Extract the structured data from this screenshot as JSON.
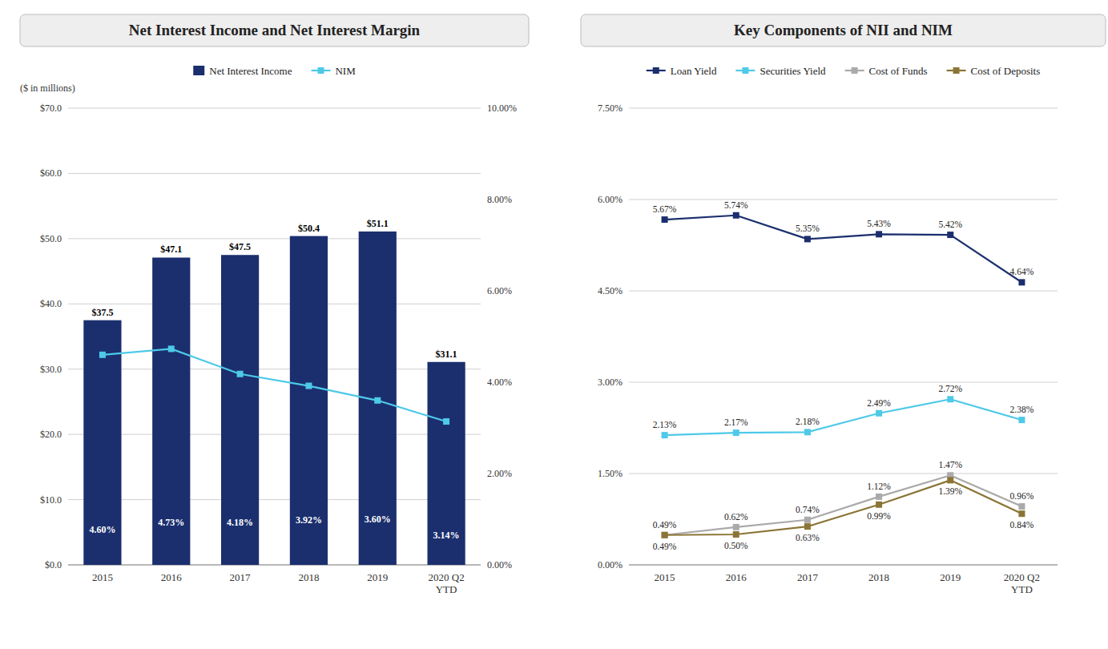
{
  "chart_data": [
    {
      "type": "bar",
      "title": "Net Interest Income and Net Interest Margin",
      "subtitle": "($ in millions)",
      "categories": [
        "2015",
        "2016",
        "2017",
        "2018",
        "2019",
        "2020 Q2\nYTD"
      ],
      "series": [
        {
          "name": "Net Interest Income",
          "type": "bar",
          "color": "#1b2f6e",
          "values": [
            37.5,
            47.1,
            47.5,
            50.4,
            51.1,
            31.1
          ],
          "value_labels": [
            "$37.5",
            "$47.1",
            "$47.5",
            "$50.4",
            "$51.1",
            "$31.1"
          ]
        },
        {
          "name": "NIM",
          "type": "line",
          "axis": "y2",
          "color": "#4ec9e8",
          "marker": "square",
          "values": [
            4.6,
            4.73,
            4.18,
            3.92,
            3.6,
            3.14
          ],
          "value_labels": [
            "4.60%",
            "4.73%",
            "4.18%",
            "3.92%",
            "3.60%",
            "3.14%"
          ]
        }
      ],
      "ylim": [
        0,
        70
      ],
      "yticks": [
        {
          "value": 0,
          "label": "$0.0"
        },
        {
          "value": 10,
          "label": "$10.0"
        },
        {
          "value": 20,
          "label": "$20.0"
        },
        {
          "value": 30,
          "label": "$30.0"
        },
        {
          "value": 40,
          "label": "$40.0"
        },
        {
          "value": 50,
          "label": "$50.0"
        },
        {
          "value": 60,
          "label": "$60.0"
        },
        {
          "value": 70,
          "label": "$70.0"
        }
      ],
      "y2lim": [
        0,
        10
      ],
      "y2ticks": [
        {
          "value": 0,
          "label": "0.00%"
        },
        {
          "value": 2,
          "label": "2.00%"
        },
        {
          "value": 4,
          "label": "4.00%"
        },
        {
          "value": 6,
          "label": "6.00%"
        },
        {
          "value": 8,
          "label": "8.00%"
        },
        {
          "value": 10,
          "label": "10.00%"
        }
      ],
      "grid": true,
      "legend": "top",
      "data_labels": true
    },
    {
      "type": "line",
      "title": "Key Components of NII and NIM",
      "categories": [
        "2015",
        "2016",
        "2017",
        "2018",
        "2019",
        "2020 Q2\nYTD"
      ],
      "series": [
        {
          "name": "Loan Yield",
          "color": "#1b2f6e",
          "marker": "square",
          "values": [
            5.67,
            5.74,
            5.35,
            5.43,
            5.42,
            4.64
          ],
          "value_labels": [
            "5.67%",
            "5.74%",
            "5.35%",
            "5.43%",
            "5.42%",
            "4.64%"
          ]
        },
        {
          "name": "Securities Yield",
          "color": "#4ec9e8",
          "marker": "square",
          "values": [
            2.13,
            2.17,
            2.18,
            2.49,
            2.72,
            2.38
          ],
          "value_labels": [
            "2.13%",
            "2.17%",
            "2.18%",
            "2.49%",
            "2.72%",
            "2.38%"
          ]
        },
        {
          "name": "Cost of Funds",
          "color": "#aaaaaa",
          "marker": "square",
          "values": [
            0.49,
            0.62,
            0.74,
            1.12,
            1.47,
            0.96
          ],
          "value_labels": [
            "0.49%",
            "0.62%",
            "0.74%",
            "1.12%",
            "1.47%",
            "0.96%"
          ]
        },
        {
          "name": "Cost of Deposits",
          "color": "#8B7536",
          "marker": "square",
          "values": [
            0.49,
            0.5,
            0.63,
            0.99,
            1.39,
            0.84
          ],
          "value_labels": [
            "0.49%",
            "0.50%",
            "0.63%",
            "0.99%",
            "1.39%",
            "0.84%"
          ]
        }
      ],
      "ylim": [
        0,
        7.5
      ],
      "yticks": [
        {
          "value": 0,
          "label": "0.00%"
        },
        {
          "value": 1.5,
          "label": "1.50%"
        },
        {
          "value": 3,
          "label": "3.00%"
        },
        {
          "value": 4.5,
          "label": "4.50%"
        },
        {
          "value": 6,
          "label": "6.00%"
        },
        {
          "value": 7.5,
          "label": "7.50%"
        }
      ],
      "grid": true,
      "legend": "top",
      "data_labels": true
    }
  ]
}
